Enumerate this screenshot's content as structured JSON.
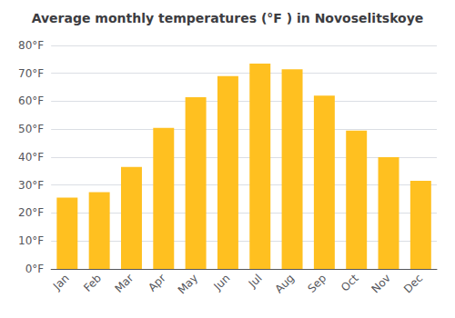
{
  "chart_data": {
    "type": "bar",
    "title": "Average monthly temperatures (°F ) in Novoselitskoye",
    "categories": [
      "Jan",
      "Feb",
      "Mar",
      "Apr",
      "May",
      "Jun",
      "Jul",
      "Aug",
      "Sep",
      "Oct",
      "Nov",
      "Dec"
    ],
    "values": [
      25.5,
      27.5,
      36.5,
      50.5,
      61.5,
      69.0,
      73.5,
      71.5,
      62.0,
      49.5,
      40.0,
      31.5
    ],
    "color": "#FFC020",
    "ylim": [
      0,
      80
    ],
    "yticks": [
      {
        "value": 0,
        "label": "0°F"
      },
      {
        "value": 10,
        "label": "10°F"
      },
      {
        "value": 20,
        "label": "20°F"
      },
      {
        "value": 30,
        "label": "30°F"
      },
      {
        "value": 40,
        "label": "40°F"
      },
      {
        "value": 50,
        "label": "50°F"
      },
      {
        "value": 60,
        "label": "60°F"
      },
      {
        "value": 70,
        "label": "70°F"
      },
      {
        "value": 80,
        "label": "80°F"
      }
    ],
    "grid": true
  }
}
